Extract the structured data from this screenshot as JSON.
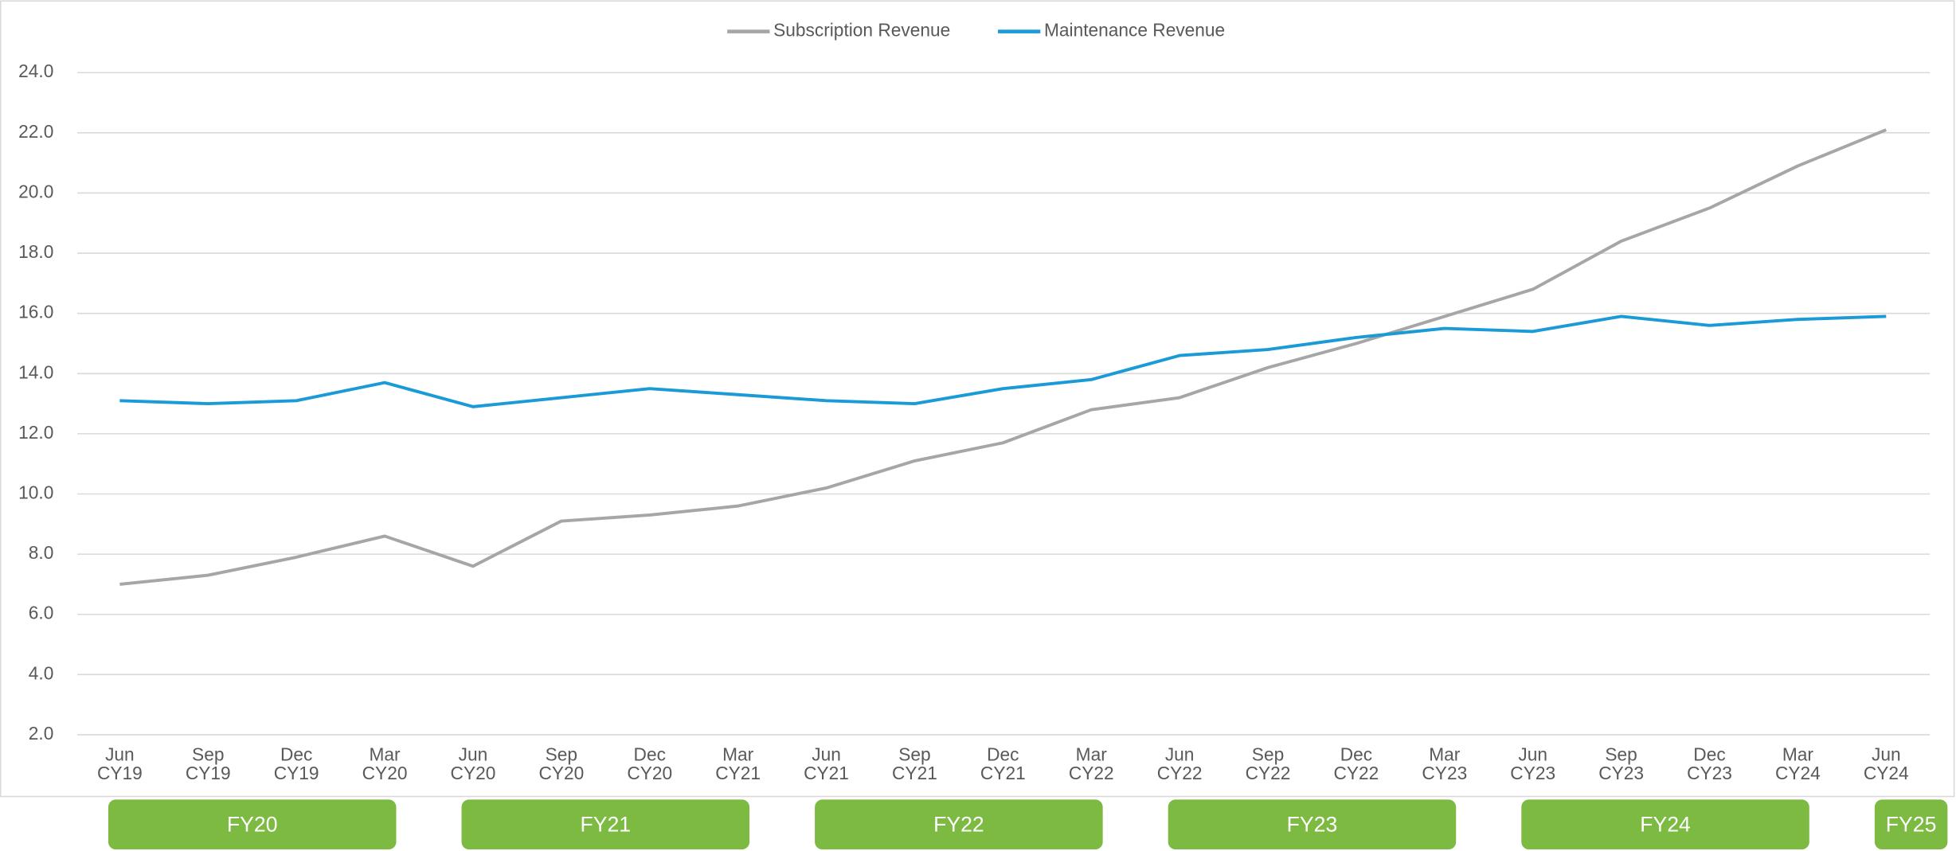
{
  "chart_data": {
    "type": "line",
    "categories": [
      [
        "Jun",
        "CY19"
      ],
      [
        "Sep",
        "CY19"
      ],
      [
        "Dec",
        "CY19"
      ],
      [
        "Mar",
        "CY20"
      ],
      [
        "Jun",
        "CY20"
      ],
      [
        "Sep",
        "CY20"
      ],
      [
        "Dec",
        "CY20"
      ],
      [
        "Mar",
        "CY21"
      ],
      [
        "Jun",
        "CY21"
      ],
      [
        "Sep",
        "CY21"
      ],
      [
        "Dec",
        "CY21"
      ],
      [
        "Mar",
        "CY22"
      ],
      [
        "Jun",
        "CY22"
      ],
      [
        "Sep",
        "CY22"
      ],
      [
        "Dec",
        "CY22"
      ],
      [
        "Mar",
        "CY23"
      ],
      [
        "Jun",
        "CY23"
      ],
      [
        "Sep",
        "CY23"
      ],
      [
        "Dec",
        "CY23"
      ],
      [
        "Mar",
        "CY24"
      ],
      [
        "Jun",
        "CY24"
      ]
    ],
    "series": [
      {
        "name": "Subscription Revenue",
        "color": "#a6a6a6",
        "values": [
          7.0,
          7.3,
          7.9,
          8.6,
          7.6,
          9.1,
          9.3,
          9.6,
          10.2,
          11.1,
          11.7,
          12.8,
          13.2,
          14.2,
          15.0,
          15.9,
          16.8,
          18.4,
          19.5,
          20.9,
          22.1
        ]
      },
      {
        "name": "Maintenance Revenue",
        "color": "#1a9bd7",
        "values": [
          13.1,
          13.0,
          13.1,
          13.7,
          12.9,
          13.2,
          13.5,
          13.3,
          13.1,
          13.0,
          13.5,
          13.8,
          14.6,
          14.8,
          15.2,
          15.5,
          15.4,
          15.9,
          15.6,
          15.8,
          15.9
        ]
      }
    ],
    "ylim": [
      2,
      24
    ],
    "yticks": [
      {
        "value": 2,
        "label": "2.0"
      },
      {
        "value": 4,
        "label": "4.0"
      },
      {
        "value": 6,
        "label": "6.0"
      },
      {
        "value": 8,
        "label": "8.0"
      },
      {
        "value": 10,
        "label": "10.0"
      },
      {
        "value": 12,
        "label": "12.0"
      },
      {
        "value": 14,
        "label": "14.0"
      },
      {
        "value": 16,
        "label": "16.0"
      },
      {
        "value": 18,
        "label": "18.0"
      },
      {
        "value": 20,
        "label": "20.0"
      },
      {
        "value": 22,
        "label": "22.0"
      },
      {
        "value": 24,
        "label": "24.0"
      }
    ],
    "grid": true,
    "legend": "top",
    "fiscal_years": {
      "color": "#7cba42",
      "labels": [
        "FY20",
        "FY21",
        "FY22",
        "FY23",
        "FY24",
        "FY25"
      ]
    }
  }
}
